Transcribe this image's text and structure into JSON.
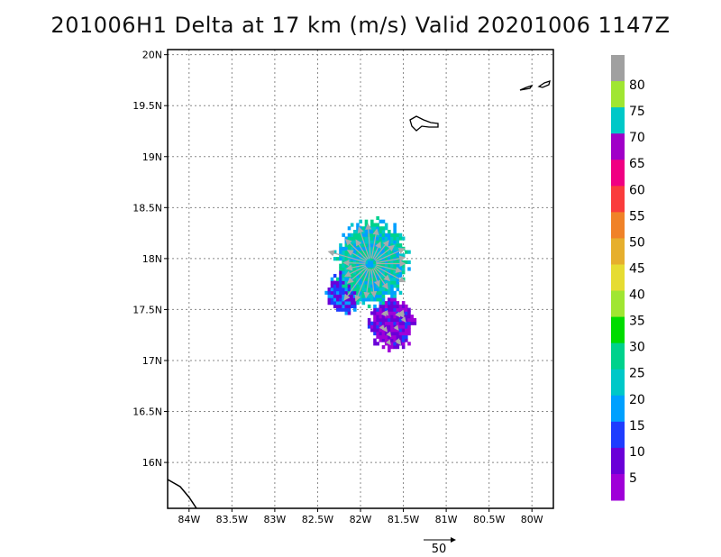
{
  "title": "201006H1 Delta at 17 km (m/s) Valid 20201006 1147Z",
  "chart_data": {
    "type": "heatmap",
    "title": "201006H1 Delta at 17 km (m/s) Valid 20201006 1147Z",
    "xlabel": "",
    "ylabel": "",
    "xlim": [
      -84.25,
      -79.75
    ],
    "ylim": [
      15.55,
      20.05
    ],
    "x_ticks": [
      {
        "value": -84.0,
        "label": "84W"
      },
      {
        "value": -83.5,
        "label": "83.5W"
      },
      {
        "value": -83.0,
        "label": "83W"
      },
      {
        "value": -82.5,
        "label": "82.5W"
      },
      {
        "value": -82.0,
        "label": "82W"
      },
      {
        "value": -81.5,
        "label": "81.5W"
      },
      {
        "value": -81.0,
        "label": "81W"
      },
      {
        "value": -80.5,
        "label": "80.5W"
      },
      {
        "value": -80.0,
        "label": "80W"
      }
    ],
    "y_ticks": [
      {
        "value": 16.0,
        "label": "16N"
      },
      {
        "value": 16.5,
        "label": "16.5N"
      },
      {
        "value": 17.0,
        "label": "17N"
      },
      {
        "value": 17.5,
        "label": "17.5N"
      },
      {
        "value": 18.0,
        "label": "18N"
      },
      {
        "value": 18.5,
        "label": "18.5N"
      },
      {
        "value": 19.0,
        "label": "19N"
      },
      {
        "value": 19.5,
        "label": "19.5N"
      },
      {
        "value": 20.0,
        "label": "20N"
      }
    ],
    "grid": true,
    "colorbar": {
      "labels": [
        "5",
        "10",
        "15",
        "20",
        "25",
        "30",
        "35",
        "40",
        "45",
        "50",
        "55",
        "60",
        "65",
        "70",
        "75",
        "80"
      ],
      "colors": [
        "#9f00d8",
        "#6a00d8",
        "#1e3cff",
        "#00a0ff",
        "#00c8c8",
        "#00d28c",
        "#00dc00",
        "#a0e632",
        "#e6dc32",
        "#e6af2d",
        "#f08228",
        "#fa3c3c",
        "#f00082",
        "#a000c8",
        "#00c8c8",
        "#a0e632",
        "#a0a0a0"
      ]
    },
    "wind_regions": [
      {
        "name": "core",
        "lon": -81.88,
        "lat": 17.95,
        "radius_deg": 0.4,
        "speed": 23
      },
      {
        "name": "south",
        "lon": -81.65,
        "lat": 17.35,
        "radius_deg": 0.25,
        "speed": 5
      },
      {
        "name": "west",
        "lon": -82.2,
        "lat": 17.65,
        "radius_deg": 0.2,
        "speed": 12
      }
    ],
    "reference_vector": {
      "value": 50,
      "label": "50"
    }
  }
}
